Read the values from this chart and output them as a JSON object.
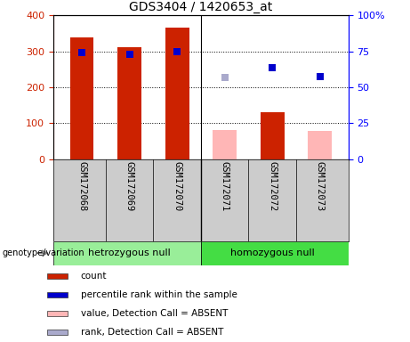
{
  "title": "GDS3404 / 1420653_at",
  "samples": [
    "GSM172068",
    "GSM172069",
    "GSM172070",
    "GSM172071",
    "GSM172072",
    "GSM172073"
  ],
  "count_values": [
    338,
    312,
    365,
    null,
    130,
    null
  ],
  "count_absent_values": [
    null,
    null,
    null,
    80,
    null,
    78
  ],
  "percentile_values": [
    296,
    291,
    299,
    null,
    254,
    229
  ],
  "percentile_absent_values": [
    null,
    null,
    null,
    228,
    null,
    null
  ],
  "count_color": "#cc2200",
  "count_absent_color": "#ffb6b6",
  "percentile_color": "#0000cc",
  "percentile_absent_color": "#aaaacc",
  "ylim_left": [
    0,
    400
  ],
  "ylim_right": [
    0,
    100
  ],
  "yticks_left": [
    0,
    100,
    200,
    300,
    400
  ],
  "yticks_right": [
    0,
    25,
    50,
    75,
    100
  ],
  "ytick_labels_right": [
    "0",
    "25",
    "50",
    "75",
    "100%"
  ],
  "group1_label": "hetrozygous null",
  "group2_label": "homozygous null",
  "group1_color": "#99ee99",
  "group2_color": "#44dd44",
  "legend_items": [
    {
      "label": "count",
      "color": "#cc2200"
    },
    {
      "label": "percentile rank within the sample",
      "color": "#0000cc"
    },
    {
      "label": "value, Detection Call = ABSENT",
      "color": "#ffb6b6"
    },
    {
      "label": "rank, Detection Call = ABSENT",
      "color": "#aaaacc"
    }
  ],
  "bar_width": 0.5,
  "marker_size": 6,
  "background_color": "#cccccc",
  "plot_bg_color": "#ffffff"
}
